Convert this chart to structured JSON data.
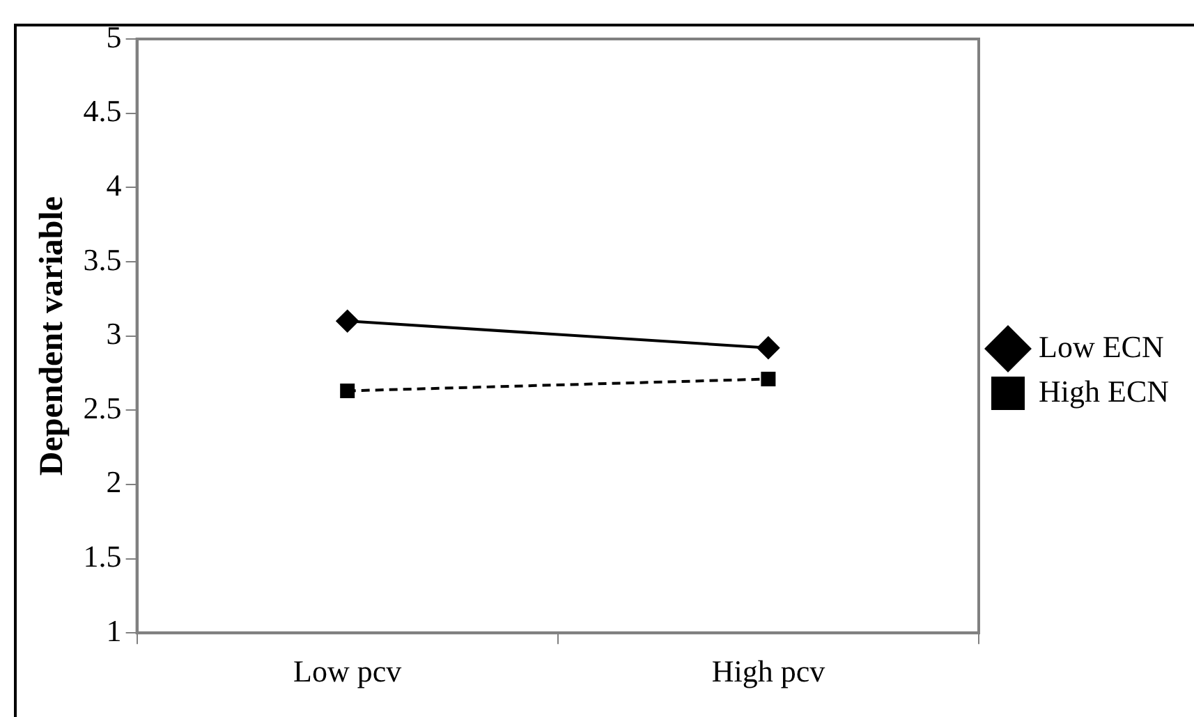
{
  "chart_data": {
    "type": "line",
    "ylabel": "Dependent variable",
    "categories": [
      "Low pcv",
      "High pcv"
    ],
    "series": [
      {
        "name": "Low ECN",
        "color": "#000000",
        "values": [
          3.1,
          2.92
        ],
        "marker": "diamond",
        "line_style": "solid"
      },
      {
        "name": "High ECN",
        "color": "#000000",
        "values": [
          2.63,
          2.71
        ],
        "marker": "square",
        "line_style": "dashed"
      }
    ],
    "ylim": [
      1,
      5
    ],
    "yticks": [
      1,
      1.5,
      2,
      2.5,
      3,
      3.5,
      4,
      4.5,
      5
    ],
    "grid": false,
    "legend": "right"
  }
}
